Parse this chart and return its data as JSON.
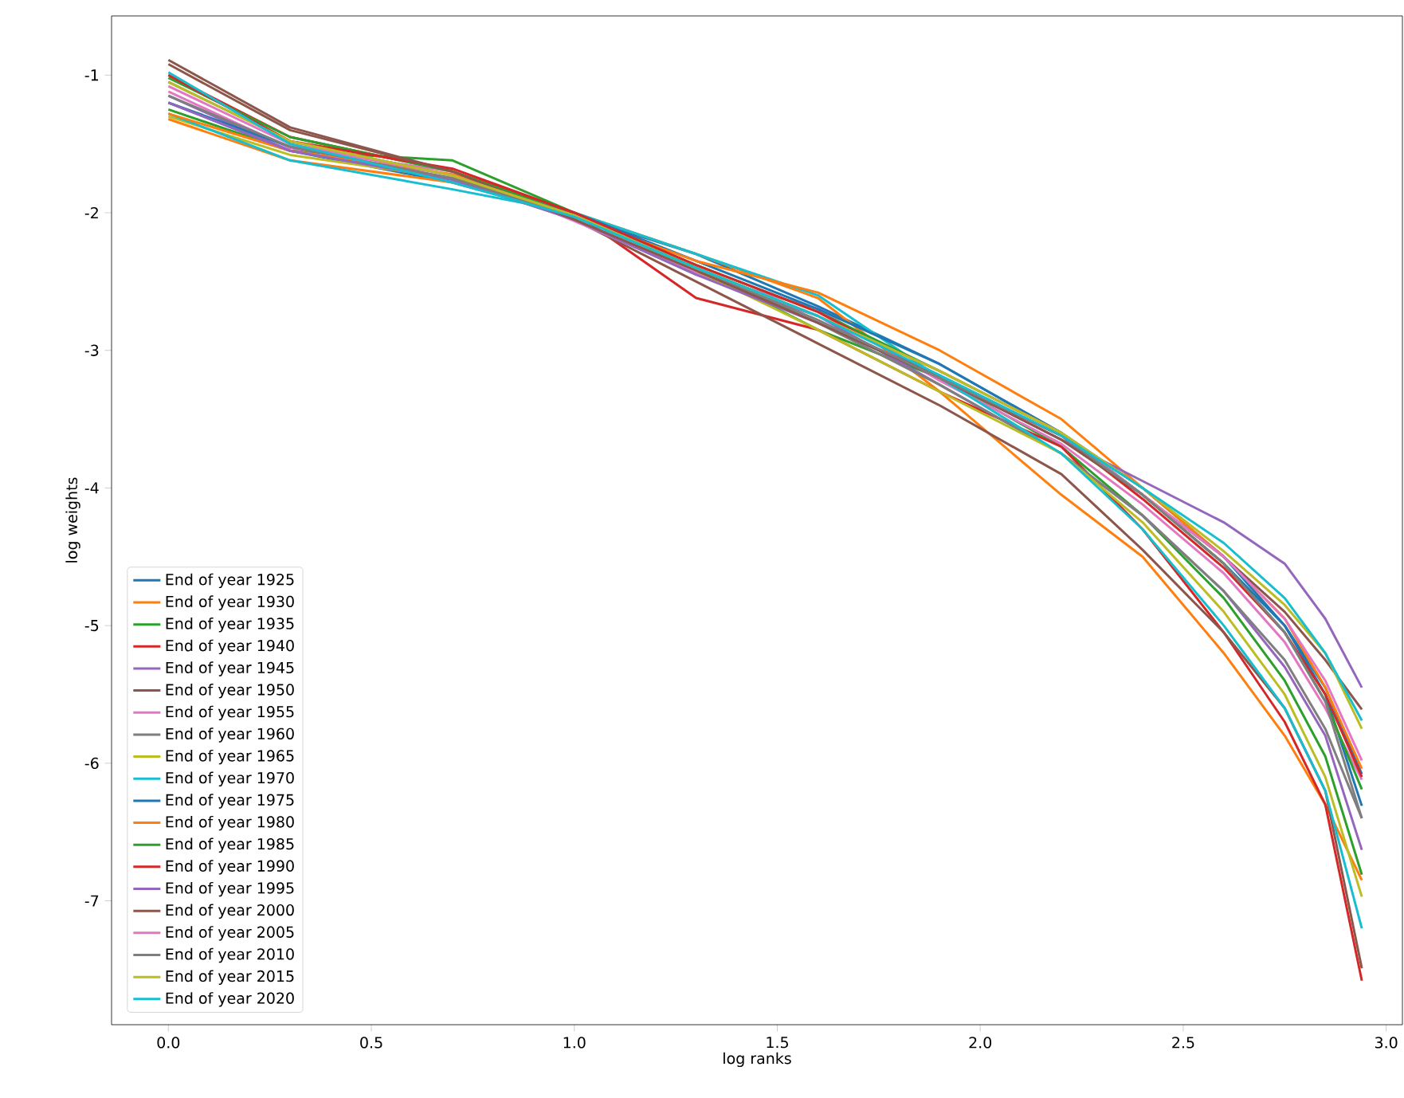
{
  "chart_data": {
    "type": "line",
    "xlabel": "log ranks",
    "ylabel": "log weights",
    "legend": "bottom left",
    "x": [
      0,
      0.3,
      0.7,
      1.0,
      1.3,
      1.6,
      1.9,
      2.2,
      2.4,
      2.6,
      2.75,
      2.85,
      2.94
    ],
    "xlim": [
      -0.14,
      3.04
    ],
    "ylim": [
      -7.9,
      -0.57
    ],
    "xticks": [
      {
        "value": 0,
        "label": "0.0"
      },
      0.5,
      {
        "value": 1,
        "label": "1.0"
      },
      1.5,
      {
        "value": 2,
        "label": "2.0"
      },
      2.5,
      {
        "value": 3,
        "label": "3.0"
      }
    ],
    "yticks": [
      -7,
      -6,
      -5,
      -4,
      -3,
      -2,
      -1
    ],
    "series": [
      {
        "name": "End of year 1925",
        "color": "#1f77b4",
        "values": [
          -1.2,
          -1.55,
          -1.78,
          -2.02,
          -2.3,
          -2.68,
          -3.1,
          -3.6,
          -4.0,
          -4.5,
          -5.0,
          -5.5,
          -6.31
        ]
      },
      {
        "name": "End of year 1930",
        "color": "#ff7f0e",
        "values": [
          -1.32,
          -1.62,
          -1.78,
          -2.0,
          -2.3,
          -2.62,
          -3.3,
          -4.05,
          -4.5,
          -5.2,
          -5.8,
          -6.3,
          -6.85
        ]
      },
      {
        "name": "End of year 1935",
        "color": "#2ca02c",
        "values": [
          -1.25,
          -1.55,
          -1.62,
          -2.0,
          -2.4,
          -2.85,
          -3.2,
          -3.7,
          -4.2,
          -4.8,
          -5.4,
          -5.95,
          -6.81
        ]
      },
      {
        "name": "End of year 1940",
        "color": "#d62728",
        "values": [
          -1.0,
          -1.45,
          -1.7,
          -2.0,
          -2.62,
          -2.85,
          -3.3,
          -3.7,
          -4.3,
          -5.05,
          -5.7,
          -6.3,
          -7.58
        ]
      },
      {
        "name": "End of year 1945",
        "color": "#9467bd",
        "values": [
          -1.15,
          -1.55,
          -1.75,
          -2.05,
          -2.45,
          -2.75,
          -3.25,
          -3.75,
          -4.2,
          -4.75,
          -5.3,
          -5.8,
          -6.63
        ]
      },
      {
        "name": "End of year 1950",
        "color": "#8c564b",
        "values": [
          -0.89,
          -1.38,
          -1.7,
          -2.05,
          -2.5,
          -2.95,
          -3.4,
          -3.9,
          -4.45,
          -5.05,
          -5.6,
          -6.2,
          -7.49
        ]
      },
      {
        "name": "End of year 1955",
        "color": "#e377c2",
        "values": [
          -1.12,
          -1.53,
          -1.7,
          -2.06,
          -2.44,
          -2.7,
          -3.22,
          -3.68,
          -4.12,
          -4.62,
          -5.12,
          -5.6,
          -6.12
        ]
      },
      {
        "name": "End of year 1960",
        "color": "#7f7f7f",
        "values": [
          -1.05,
          -1.48,
          -1.73,
          -2.03,
          -2.4,
          -2.8,
          -3.25,
          -3.75,
          -4.2,
          -4.75,
          -5.25,
          -5.75,
          -6.4
        ]
      },
      {
        "name": "End of year 1965",
        "color": "#bcbd22",
        "values": [
          -1.3,
          -1.58,
          -1.75,
          -2.0,
          -2.42,
          -2.85,
          -3.3,
          -3.75,
          -4.25,
          -4.9,
          -5.5,
          -6.1,
          -6.97
        ]
      },
      {
        "name": "End of year 1970",
        "color": "#17becf",
        "values": [
          -1.28,
          -1.62,
          -1.83,
          -2.0,
          -2.3,
          -2.6,
          -3.2,
          -3.75,
          -4.3,
          -5.0,
          -5.6,
          -6.2,
          -7.2
        ]
      },
      {
        "name": "End of year 1975",
        "color": "#1f77b4",
        "values": [
          -1.2,
          -1.52,
          -1.76,
          -2.0,
          -2.35,
          -2.7,
          -3.1,
          -3.6,
          -4.05,
          -4.55,
          -5.0,
          -5.45,
          -6.08
        ]
      },
      {
        "name": "End of year 1980",
        "color": "#ff7f0e",
        "values": [
          -1.28,
          -1.55,
          -1.72,
          -2.03,
          -2.35,
          -2.58,
          -3.0,
          -3.5,
          -4.0,
          -4.5,
          -4.95,
          -5.45,
          -6.04
        ]
      },
      {
        "name": "End of year 1985",
        "color": "#2ca02c",
        "values": [
          -1.02,
          -1.45,
          -1.7,
          -2.02,
          -2.38,
          -2.72,
          -3.15,
          -3.6,
          -4.05,
          -4.55,
          -5.05,
          -5.55,
          -6.19
        ]
      },
      {
        "name": "End of year 1990",
        "color": "#d62728",
        "values": [
          -1.0,
          -1.48,
          -1.68,
          -2.0,
          -2.38,
          -2.72,
          -3.2,
          -3.62,
          -4.08,
          -4.58,
          -5.05,
          -5.5,
          -6.1
        ]
      },
      {
        "name": "End of year 1995",
        "color": "#9467bd",
        "values": [
          -1.2,
          -1.55,
          -1.76,
          -2.05,
          -2.45,
          -2.8,
          -3.2,
          -3.65,
          -3.95,
          -4.25,
          -4.55,
          -4.95,
          -5.45
        ]
      },
      {
        "name": "End of year 2000",
        "color": "#8c564b",
        "values": [
          -0.92,
          -1.4,
          -1.7,
          -2.05,
          -2.42,
          -2.8,
          -3.2,
          -3.65,
          -4.05,
          -4.5,
          -4.9,
          -5.25,
          -5.61
        ]
      },
      {
        "name": "End of year 2005",
        "color": "#e377c2",
        "values": [
          -1.08,
          -1.5,
          -1.73,
          -2.02,
          -2.4,
          -2.75,
          -3.15,
          -3.6,
          -4.05,
          -4.5,
          -4.95,
          -5.4,
          -5.98
        ]
      },
      {
        "name": "End of year 2010",
        "color": "#7f7f7f",
        "values": [
          -1.15,
          -1.52,
          -1.75,
          -2.03,
          -2.4,
          -2.78,
          -3.2,
          -3.62,
          -4.05,
          -4.55,
          -5.05,
          -5.55,
          -6.4
        ]
      },
      {
        "name": "End of year 2015",
        "color": "#bcbd22",
        "values": [
          -1.05,
          -1.48,
          -1.73,
          -2.02,
          -2.4,
          -2.75,
          -3.15,
          -3.6,
          -4.0,
          -4.46,
          -4.85,
          -5.2,
          -5.75
        ]
      },
      {
        "name": "End of year 2020",
        "color": "#17becf",
        "values": [
          -0.98,
          -1.5,
          -1.78,
          -2.03,
          -2.4,
          -2.75,
          -3.18,
          -3.62,
          -4.0,
          -4.4,
          -4.8,
          -5.2,
          -5.69
        ]
      }
    ]
  }
}
